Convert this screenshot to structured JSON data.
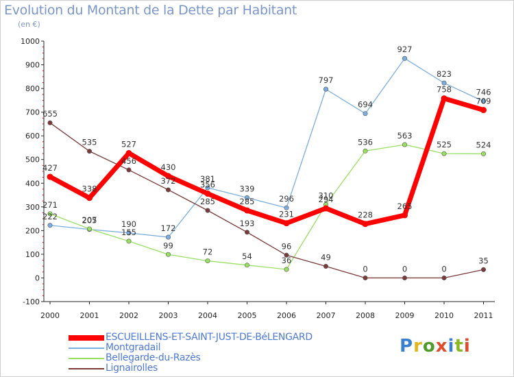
{
  "title": "Evolution du Montant de la Dette par Habitant",
  "subtitle": "(en €)",
  "logo": {
    "letters": [
      "P",
      "r",
      "o",
      "x",
      "i",
      "t",
      "i"
    ],
    "colors": [
      "#3a7fd0",
      "#e3b51a",
      "#4f9a2a",
      "#e04a2a",
      "#3a7fd0",
      "#8ab822",
      "#e04a2a"
    ]
  },
  "chart_data": {
    "type": "line",
    "title": "Evolution du Montant de la Dette par Habitant",
    "subtitle": "(en €)",
    "xlabel": "",
    "ylabel": "",
    "x": [
      "2000",
      "2001",
      "2002",
      "2003",
      "2004",
      "2005",
      "2006",
      "2007",
      "2008",
      "2009",
      "2010",
      "2011"
    ],
    "ylim": [
      -100,
      1000
    ],
    "yticks": [
      "-100",
      "0",
      "100",
      "200",
      "300",
      "400",
      "500",
      "600",
      "700",
      "800",
      "900",
      "1000"
    ],
    "grid": false,
    "legend_position": "bottom-left",
    "series": [
      {
        "name": "ESCUEILLENS-ET-SAINT-JUST-DE-BéLENGARD",
        "color": "#ff0000",
        "thick": true,
        "values": [
          427,
          338,
          527,
          430,
          356,
          285,
          231,
          294,
          228,
          265,
          758,
          709
        ],
        "labels": [
          "427",
          "338",
          "527",
          "430",
          "356",
          "285",
          "231",
          "294",
          "228",
          "265",
          "758",
          "709"
        ]
      },
      {
        "name": "Montgradail",
        "color": "#7aaee0",
        "thick": false,
        "values": [
          222,
          205,
          190,
          172,
          381,
          339,
          296,
          797,
          694,
          927,
          823,
          746
        ],
        "labels": [
          "222",
          "205",
          "190",
          "172",
          "381",
          "339",
          "296",
          "797",
          "694",
          "927",
          "823",
          "746"
        ]
      },
      {
        "name": "Bellegarde-du-Razès",
        "color": "#98e060",
        "thick": false,
        "values": [
          271,
          207,
          155,
          99,
          72,
          54,
          36,
          310,
          536,
          563,
          525,
          524
        ],
        "labels": [
          "271",
          "207",
          "155",
          "99",
          "72",
          "54",
          "36",
          "310",
          "536",
          "563",
          "525",
          "524"
        ]
      },
      {
        "name": "Lignairolles",
        "color": "#7a3a3a",
        "thick": false,
        "values": [
          655,
          535,
          456,
          372,
          285,
          193,
          96,
          49,
          0,
          0,
          0,
          35
        ],
        "labels": [
          "655",
          "535",
          "456",
          "372",
          "285",
          "193",
          "96",
          "49",
          "0",
          "0",
          "0",
          "35"
        ]
      }
    ]
  }
}
